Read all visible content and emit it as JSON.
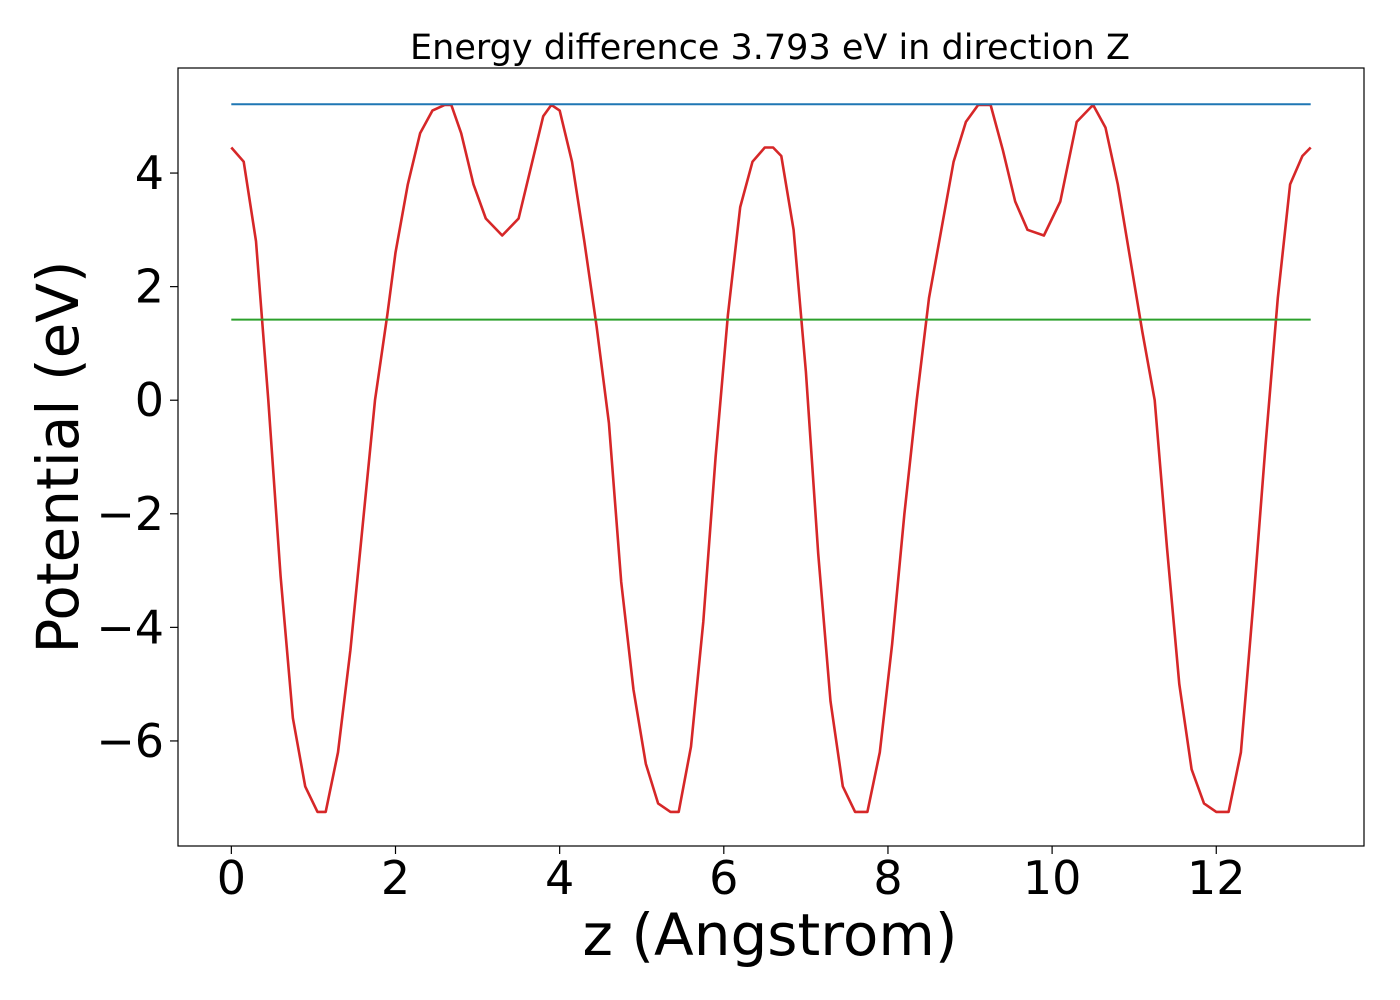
{
  "chart_data": {
    "type": "line",
    "title": "Energy difference 3.793 eV in direction Z",
    "xlabel": "z (Angstrom)",
    "ylabel": "Potential (eV)",
    "xlim": [
      -0.65,
      13.8
    ],
    "ylim": [
      -7.85,
      5.85
    ],
    "xticks": [
      0,
      2,
      4,
      6,
      8,
      10,
      12
    ],
    "xtick_labels": [
      "0",
      "2",
      "4",
      "6",
      "8",
      "10",
      "12"
    ],
    "yticks": [
      4,
      2,
      0,
      -2,
      -4,
      -6
    ],
    "ytick_labels": [
      "4",
      "2",
      "0",
      "−2",
      "−4",
      "−6"
    ],
    "grid": false,
    "series": [
      {
        "color": "#d62728",
        "x": [
          0,
          0.15,
          0.3,
          0.45,
          0.6,
          0.75,
          0.9,
          1.05,
          1.15,
          1.3,
          1.45,
          1.6,
          1.75,
          1.9,
          2.0,
          2.15,
          2.3,
          2.45,
          2.6,
          2.68,
          2.8,
          2.95,
          3.1,
          3.3,
          3.5,
          3.65,
          3.8,
          3.9,
          4.0,
          4.15,
          4.3,
          4.45,
          4.6,
          4.75,
          4.9,
          5.05,
          5.2,
          5.35,
          5.45,
          5.6,
          5.75,
          5.9,
          6.05,
          6.2,
          6.35,
          6.5,
          6.6,
          6.7,
          6.85,
          7.0,
          7.15,
          7.3,
          7.45,
          7.6,
          7.75,
          7.9,
          8.05,
          8.2,
          8.35,
          8.5,
          8.65,
          8.8,
          8.95,
          9.1,
          9.25,
          9.4,
          9.55,
          9.7,
          9.9,
          10.1,
          10.3,
          10.5,
          10.65,
          10.8,
          10.95,
          11.1,
          11.25,
          11.4,
          11.55,
          11.7,
          11.85,
          12.0,
          12.15,
          12.3,
          12.45,
          12.6,
          12.75,
          12.9,
          13.05,
          13.15
        ],
        "y": [
          4.45,
          4.2,
          2.8,
          0.0,
          -3.1,
          -5.6,
          -6.8,
          -7.25,
          -7.25,
          -6.2,
          -4.4,
          -2.2,
          0.0,
          1.5,
          2.6,
          3.8,
          4.7,
          5.1,
          5.2,
          5.2,
          4.7,
          3.8,
          3.2,
          2.9,
          3.2,
          4.1,
          5.0,
          5.2,
          5.1,
          4.2,
          2.8,
          1.3,
          -0.4,
          -3.2,
          -5.1,
          -6.4,
          -7.1,
          -7.25,
          -7.25,
          -6.1,
          -3.9,
          -1.0,
          1.5,
          3.4,
          4.2,
          4.45,
          4.45,
          4.3,
          3.0,
          0.5,
          -2.7,
          -5.3,
          -6.8,
          -7.25,
          -7.25,
          -6.2,
          -4.3,
          -2.0,
          0.0,
          1.8,
          3.0,
          4.2,
          4.9,
          5.2,
          5.2,
          4.4,
          3.5,
          3.0,
          2.9,
          3.5,
          4.9,
          5.2,
          4.8,
          3.8,
          2.5,
          1.2,
          0.0,
          -2.6,
          -5.0,
          -6.5,
          -7.1,
          -7.25,
          -7.25,
          -6.2,
          -3.6,
          -0.8,
          1.8,
          3.8,
          4.3,
          4.45
        ]
      },
      {
        "color": "#1f77b4",
        "x": [
          0,
          13.15
        ],
        "y": [
          5.21,
          5.21
        ]
      },
      {
        "color": "#2ca02c",
        "x": [
          0,
          13.15
        ],
        "y": [
          1.42,
          1.42
        ]
      }
    ]
  }
}
